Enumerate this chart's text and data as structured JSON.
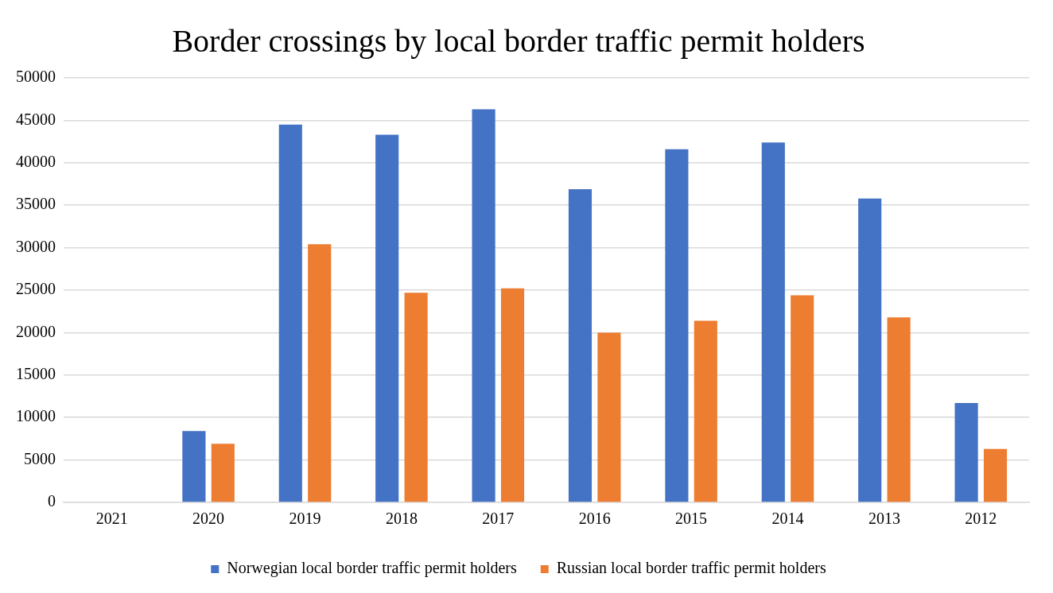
{
  "chart_data": {
    "type": "bar",
    "title": "Border crossings by local border traffic permit holders",
    "categories": [
      "2021",
      "2020",
      "2019",
      "2018",
      "2017",
      "2016",
      "2015",
      "2014",
      "2013",
      "2012"
    ],
    "series": [
      {
        "name": "Norwegian local border traffic permit holders",
        "color": "#4472c4",
        "values": [
          0,
          8400,
          44500,
          43300,
          46300,
          36900,
          41600,
          42400,
          35800,
          11700
        ]
      },
      {
        "name": "Russian local border traffic permit holders",
        "color": "#ed7d31",
        "values": [
          0,
          6900,
          30400,
          24700,
          25200,
          20000,
          21400,
          24400,
          21800,
          6300
        ]
      }
    ],
    "ylim": [
      0,
      50000
    ],
    "yticks": [
      0,
      5000,
      10000,
      15000,
      20000,
      25000,
      30000,
      35000,
      40000,
      45000,
      50000
    ],
    "grid": "y",
    "legend": "bottom"
  }
}
